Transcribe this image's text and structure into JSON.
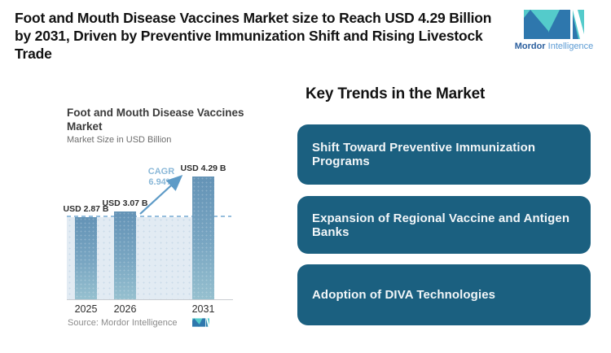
{
  "header": {
    "headline": "Foot and Mouth Disease Vaccines Market size to Reach USD 4.29 Billion by 2031, Driven by Preventive Immunization Shift and Rising Livestock Trade"
  },
  "brand": {
    "primary": "Mordor",
    "secondary": "Intelligence",
    "colors": {
      "teal": "#54cbcb",
      "navy": "#2e77ad",
      "text_navy": "#2b5f9e",
      "text_blue": "#5d9cd4"
    }
  },
  "chart_data": {
    "type": "bar",
    "title": "Foot and Mouth Disease Vaccines Market",
    "subtitle": "Market Size in USD Billion",
    "categories": [
      "2025",
      "2026",
      "2031"
    ],
    "values": [
      2.87,
      3.07,
      4.29
    ],
    "value_labels": [
      "USD 2.87 B",
      "USD 3.07 B",
      "USD 4.29 B"
    ],
    "cagr": {
      "label": "CAGR",
      "value": "6.94%"
    },
    "baseline_value": 2.87,
    "ylim": [
      0,
      4.29
    ],
    "grid": false,
    "source": "Source: Mordor Intelligence",
    "colors": {
      "bar_top": "#6493b6",
      "bar_bottom": "#96c0cf",
      "area_fill": "#e2ebf3",
      "dashed_line": "#96bedd",
      "arrow": "#5e9bc7",
      "cagr_text": "#8ab8d8"
    }
  },
  "trends": {
    "heading": "Key Trends in the Market",
    "box_color": "#1b6080",
    "items": [
      {
        "label": "Shift Toward Preventive Immunization Programs"
      },
      {
        "label": "Expansion of Regional Vaccine and Antigen Banks"
      },
      {
        "label": "Adoption of DIVA Technologies"
      }
    ]
  }
}
